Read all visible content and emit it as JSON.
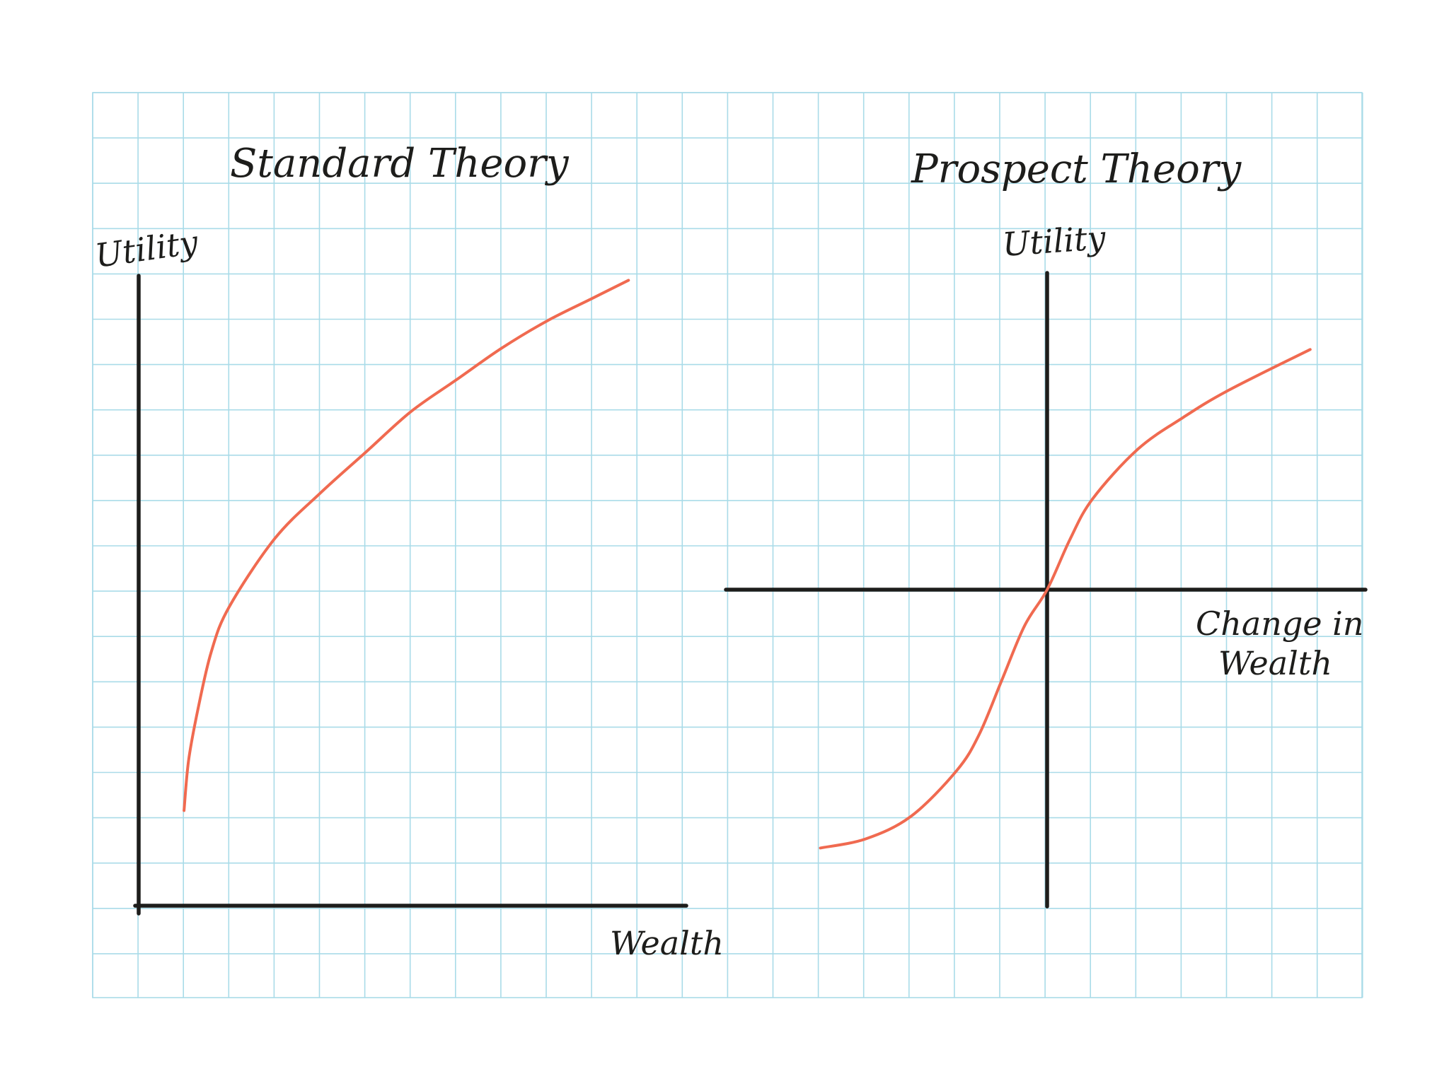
{
  "colors": {
    "background": "#ffffff",
    "grid": "#a9dbe8",
    "axis": "#1d1d1b",
    "curve": "#f06a50",
    "text": "#1d1d1b"
  },
  "chart_data": [
    {
      "type": "line",
      "title": "Standard Theory",
      "xlabel": "Wealth",
      "ylabel": "Utility",
      "grid": true,
      "xlim": [
        0,
        12
      ],
      "ylim": [
        0,
        14
      ],
      "series": [
        {
          "x": [
            1,
            1.1,
            1.3,
            1.6,
            2,
            3,
            4,
            5,
            6,
            7,
            8,
            9,
            10,
            10.8
          ],
          "y": [
            2.1,
            3.2,
            4.3,
            5.6,
            6.6,
            8.1,
            9.1,
            10.0,
            10.9,
            11.6,
            12.3,
            12.9,
            13.4,
            13.8
          ]
        }
      ]
    },
    {
      "type": "line",
      "title": "Prospect Theory",
      "xlabel": "Change in Wealth",
      "ylabel": "Utility",
      "grid": true,
      "xlim": [
        -7,
        7
      ],
      "ylim": [
        -7,
        7
      ],
      "series": [
        {
          "x": [
            -5,
            -4,
            -3,
            -2,
            -1.5,
            -1,
            -0.5,
            0,
            0.5,
            1,
            2,
            3,
            4,
            5.8
          ],
          "y": [
            -5.7,
            -5.5,
            -5.0,
            -4.0,
            -3.2,
            -2.0,
            -0.8,
            0,
            1.1,
            2.0,
            3.1,
            3.8,
            4.4,
            5.3
          ]
        }
      ]
    }
  ]
}
